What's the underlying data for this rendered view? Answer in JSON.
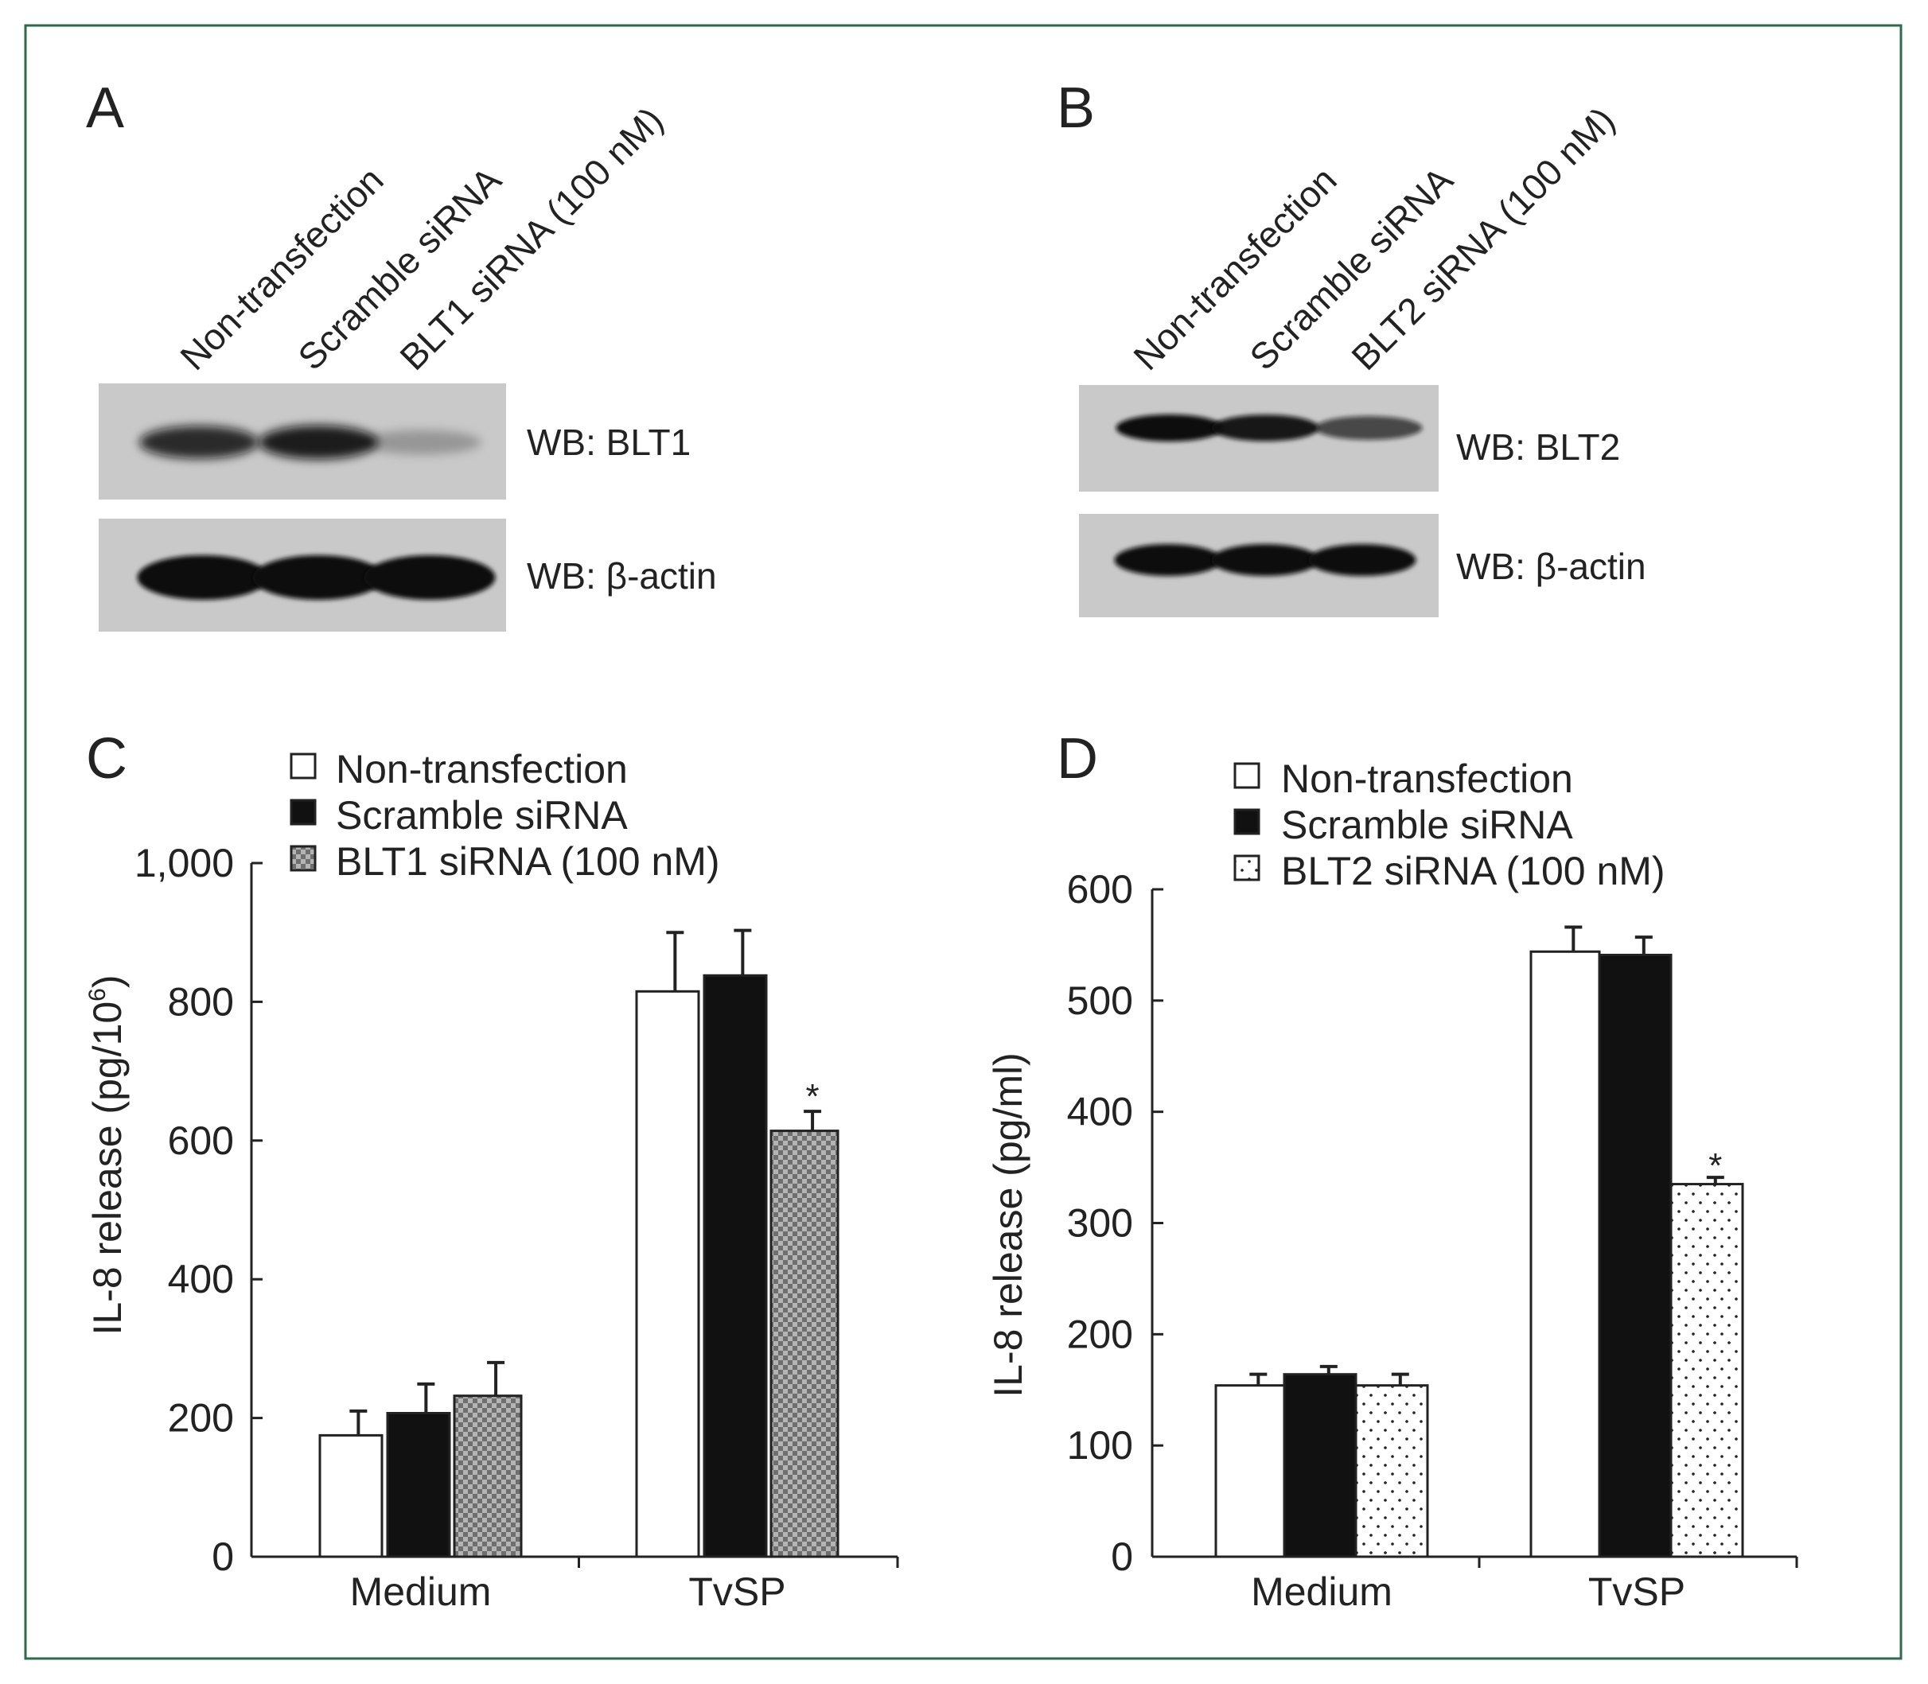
{
  "colors": {
    "frame": "#2f6b4a",
    "ink": "#222222",
    "blot_bg": "#c9c9c9",
    "checker_a": "#6f6f6f",
    "checker_b": "#b4b4b4"
  },
  "panels": {
    "A": {
      "letter": "A",
      "lanes": [
        "Non-transfection",
        "Scramble siRNA",
        "BLT1 siRNA (100 nM)"
      ],
      "blot_labels": [
        "WB: BLT1",
        "WB: β-actin"
      ],
      "band_intensity": [
        [
          0.85,
          0.92,
          0.25
        ],
        [
          1.0,
          1.0,
          1.0
        ]
      ]
    },
    "B": {
      "letter": "B",
      "lanes": [
        "Non-transfection",
        "Scramble siRNA",
        "BLT2 siRNA (100 nM)"
      ],
      "blot_labels": [
        "WB: BLT2",
        "WB: β-actin"
      ],
      "band_intensity": [
        [
          1.0,
          0.95,
          0.7
        ],
        [
          1.0,
          1.0,
          1.0
        ]
      ]
    },
    "C": {
      "letter": "C"
    },
    "D": {
      "letter": "D"
    }
  },
  "chart_data": [
    {
      "panel": "C",
      "type": "bar",
      "categories": [
        "Medium",
        "TvSP"
      ],
      "ylabel": "IL-8 release (pg/10",
      "ylabel_sup": "6",
      "ylabel_end": ")",
      "ylim": [
        0,
        1000
      ],
      "yticks": [
        0,
        200,
        400,
        600,
        800,
        1000
      ],
      "ytick_labels": [
        "0",
        "200",
        "400",
        "600",
        "800",
        "1,000"
      ],
      "legend_position": "top",
      "series": [
        {
          "name": "Non-transfection",
          "fill": "white",
          "values": [
            175,
            815
          ],
          "errors": [
            35,
            85
          ]
        },
        {
          "name": "Scramble siRNA",
          "fill": "black",
          "values": [
            207,
            838
          ],
          "errors": [
            42,
            65
          ]
        },
        {
          "name": "BLT1 siRNA (100 nM)",
          "fill": "checker",
          "values": [
            232,
            614
          ],
          "errors": [
            48,
            28
          ]
        }
      ],
      "annotations": [
        {
          "text": "*",
          "category": "TvSP",
          "series": 2
        }
      ]
    },
    {
      "panel": "D",
      "type": "bar",
      "categories": [
        "Medium",
        "TvSP"
      ],
      "ylabel": "IL-8 release (pg/ml)",
      "ylabel_sup": "",
      "ylabel_end": "",
      "ylim": [
        0,
        600
      ],
      "yticks": [
        0,
        100,
        200,
        300,
        400,
        500,
        600
      ],
      "ytick_labels": [
        "0",
        "100",
        "200",
        "300",
        "400",
        "500",
        "600"
      ],
      "legend_position": "top",
      "series": [
        {
          "name": "Non-transfection",
          "fill": "white",
          "values": [
            154,
            544
          ],
          "errors": [
            10,
            22
          ]
        },
        {
          "name": "Scramble siRNA",
          "fill": "black",
          "values": [
            164,
            541
          ],
          "errors": [
            7,
            16
          ]
        },
        {
          "name": "BLT2 siRNA (100 nM)",
          "fill": "dots",
          "values": [
            154,
            335
          ],
          "errors": [
            10,
            6
          ]
        }
      ],
      "annotations": [
        {
          "text": "*",
          "category": "TvSP",
          "series": 2
        }
      ]
    }
  ]
}
